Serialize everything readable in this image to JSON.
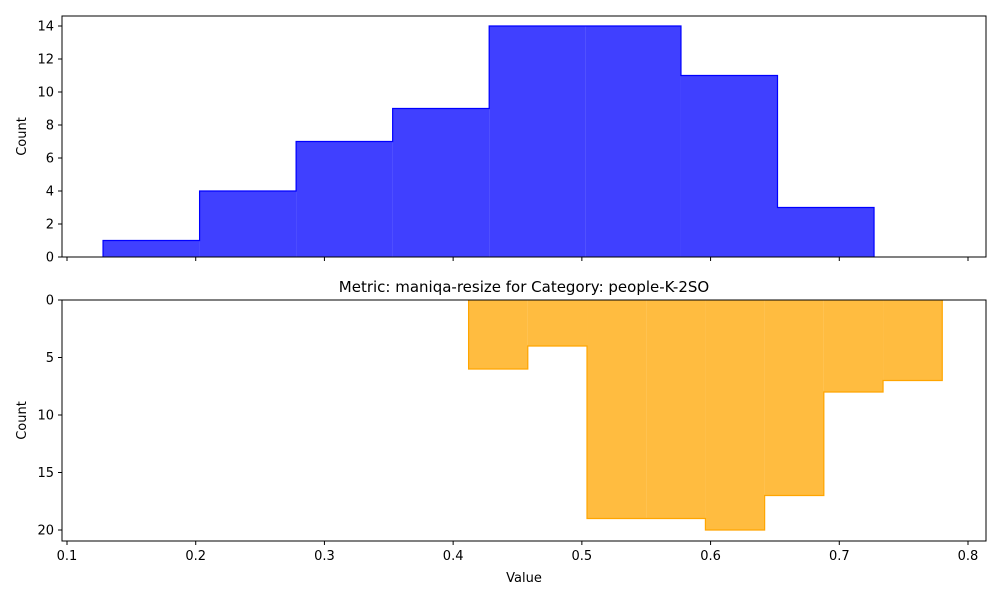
{
  "chart_data": [
    {
      "type": "histogram",
      "title": "",
      "xlabel": "",
      "ylabel": "Count",
      "xlim": [
        0.1,
        0.8
      ],
      "ylim": [
        0,
        14
      ],
      "y_inverted": false,
      "xticks": [],
      "yticks": [
        "0",
        "2",
        "4",
        "6",
        "8",
        "10",
        "12",
        "14"
      ],
      "color": "#0000FF",
      "fill_alpha": 0.75,
      "series": [
        {
          "bins": [
            0.128,
            0.203,
            0.278,
            0.353,
            0.428,
            0.503,
            0.577,
            0.652,
            0.727
          ],
          "counts": [
            1,
            4,
            7,
            9,
            14,
            14,
            11,
            3
          ]
        }
      ]
    },
    {
      "type": "histogram",
      "title": "Metric: maniqa-resize for Category: people-K-2SO",
      "xlabel": "Value",
      "ylabel": "Count",
      "xlim": [
        0.1,
        0.8
      ],
      "ylim": [
        0,
        20
      ],
      "y_inverted": true,
      "xticks": [
        "0.1",
        "0.2",
        "0.3",
        "0.4",
        "0.5",
        "0.6",
        "0.7",
        "0.8"
      ],
      "yticks": [
        "0",
        "5",
        "10",
        "15",
        "20"
      ],
      "color": "#FFA500",
      "fill_alpha": 0.75,
      "series": [
        {
          "bins": [
            0.412,
            0.458,
            0.504,
            0.55,
            0.596,
            0.642,
            0.688,
            0.734,
            0.78
          ],
          "counts": [
            6,
            4,
            19,
            19,
            20,
            17,
            8,
            7
          ]
        }
      ]
    }
  ]
}
